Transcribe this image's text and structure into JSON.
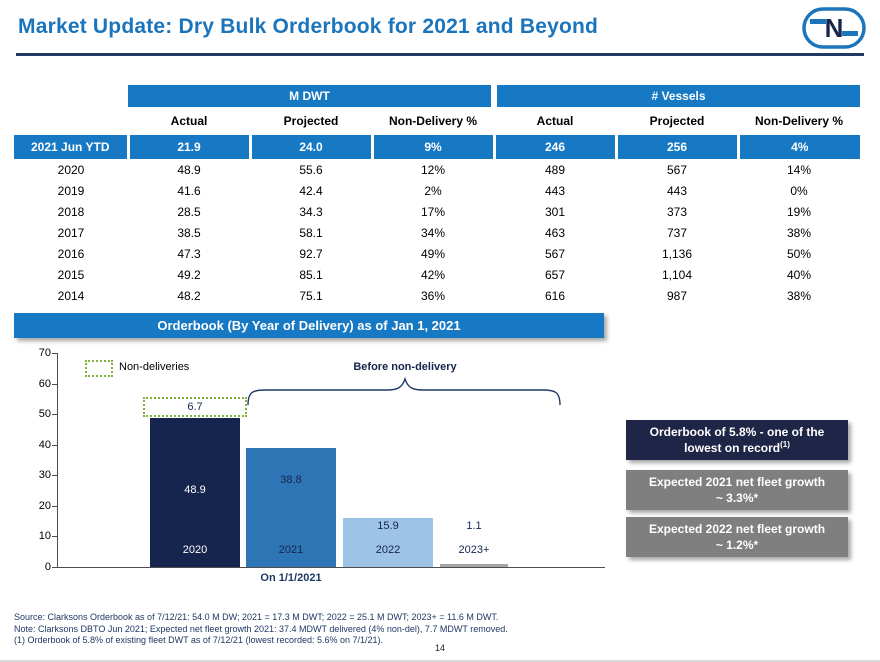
{
  "header": {
    "title": "Market Update: Dry Bulk Orderbook for 2021 and Beyond",
    "logo_letter": "N"
  },
  "table": {
    "group_headers": [
      "M DWT",
      "# Vessels"
    ],
    "sub_headers": [
      "Actual",
      "Projected",
      "Non-Delivery %",
      "Actual",
      "Projected",
      "Non-Delivery %"
    ],
    "highlight_row": {
      "year": "2021 Jun YTD",
      "values": [
        "21.9",
        "24.0",
        "9%",
        "246",
        "256",
        "4%"
      ]
    },
    "rows": [
      {
        "year": "2020",
        "values": [
          "48.9",
          "55.6",
          "12%",
          "489",
          "567",
          "14%"
        ]
      },
      {
        "year": "2019",
        "values": [
          "41.6",
          "42.4",
          "2%",
          "443",
          "443",
          "0%"
        ]
      },
      {
        "year": "2018",
        "values": [
          "28.5",
          "34.3",
          "17%",
          "301",
          "373",
          "19%"
        ]
      },
      {
        "year": "2017",
        "values": [
          "38.5",
          "58.1",
          "34%",
          "463",
          "737",
          "38%"
        ]
      },
      {
        "year": "2016",
        "values": [
          "47.3",
          "92.7",
          "49%",
          "567",
          "1,136",
          "50%"
        ]
      },
      {
        "year": "2015",
        "values": [
          "49.2",
          "85.1",
          "42%",
          "657",
          "1,104",
          "40%"
        ]
      },
      {
        "year": "2014",
        "values": [
          "48.2",
          "75.1",
          "36%",
          "616",
          "987",
          "38%"
        ]
      }
    ]
  },
  "banner": "Orderbook (By Year of Delivery) as of Jan 1, 2021",
  "chart_data": {
    "type": "bar",
    "title": "Orderbook (By Year of Delivery) as of Jan 1, 2021",
    "categories": [
      "2020",
      "2021",
      "2022",
      "2023+"
    ],
    "values": [
      48.9,
      38.8,
      15.9,
      1.1
    ],
    "non_deliveries": [
      6.7,
      null,
      null,
      null
    ],
    "bar_colors": [
      "#16254e",
      "#2e75b6",
      "#9dc3e6",
      "#a6a6a6"
    ],
    "ylim": [
      0,
      70
    ],
    "yticks": [
      0,
      10,
      20,
      30,
      40,
      50,
      60,
      70
    ],
    "legend_label": "Non-deliveries",
    "annotation": "Before non-delivery",
    "x_note": "On 1/1/2021",
    "accent_green": "#7fb43c",
    "grid": false,
    "legend_position": "top-left"
  },
  "callouts": [
    {
      "line1": "Orderbook of 5.8% - one of the",
      "line2": "lowest on record",
      "sup": "(1)",
      "bg": "#1e2547"
    },
    {
      "line1": "Expected 2021 net fleet growth",
      "line2": "~ 3.3%*",
      "bg": "#7f7f7f"
    },
    {
      "line1": "Expected 2022 net fleet growth",
      "line2": "~ 1.2%*",
      "bg": "#7f7f7f"
    }
  ],
  "footnotes": [
    "Source: Clarksons Orderbook as of 7/12/21: 54.0 M DW; 2021 = 17.3 M DWT; 2022 = 25.1 M DWT; 2023+ = 11.6 M DWT.",
    "Note: Clarksons DBTO Jun 2021; Expected net fleet growth 2021: 37.4 MDWT delivered (4% non-del), 7.7 MDWT removed.",
    "(1)   Orderbook of 5.8% of existing fleet DWT as of 7/12/21 (lowest recorded: 5.6% on 7/1/21)."
  ],
  "page_number": "14"
}
